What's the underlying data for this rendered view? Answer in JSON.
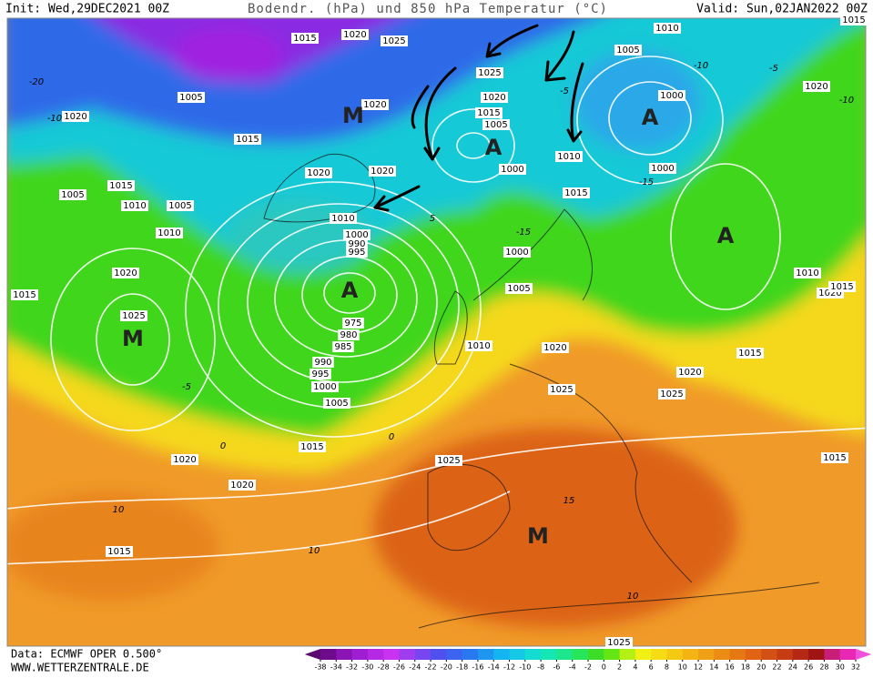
{
  "header": {
    "init": "Init: Wed,29DEC2021 00Z",
    "title": "Bodendr. (hPa) und 850 hPa Temperatur (°C)",
    "valid": "Valid: Sun,02JAN2022 00Z"
  },
  "footer": {
    "source": "Data: ECMWF OPER 0.500°",
    "site": "WWW.WETTERZENTRALE.DE"
  },
  "isobar_labels": [
    1015,
    1020,
    1025,
    1005,
    1020,
    1015,
    1020,
    1025,
    1020,
    1015,
    1005,
    1000,
    1010,
    1010,
    1005,
    1000,
    1000,
    1020,
    1015,
    1015,
    1005,
    1010,
    1005,
    1010,
    1020,
    1015,
    1025,
    1020,
    1020,
    1010,
    1000,
    990,
    995,
    1000,
    1005,
    975,
    980,
    985,
    990,
    995,
    1000,
    1005,
    1010,
    1020,
    1015,
    1020,
    1020,
    1025,
    1025,
    1020,
    1025,
    1015,
    1010,
    1020,
    1015,
    1015,
    1015,
    1025,
    1015
  ],
  "temperature_labels": [
    -20,
    -10,
    -10,
    -5,
    -15,
    -10,
    -5,
    0,
    0,
    5,
    10,
    15,
    10,
    10,
    -5,
    -15
  ],
  "pressure_centers": [
    "M",
    "A",
    "A",
    "A",
    "A",
    "M",
    "M"
  ],
  "colorbar": {
    "ticks": [
      -38,
      -34,
      -32,
      -30,
      -28,
      -26,
      -24,
      -22,
      -20,
      -18,
      -16,
      -14,
      -12,
      -10,
      -8,
      -6,
      -4,
      -2,
      0,
      2,
      4,
      6,
      8,
      10,
      12,
      14,
      16,
      18,
      20,
      22,
      24,
      26,
      28,
      30,
      32
    ],
    "colors": [
      "#5a0a6e",
      "#6e0a8c",
      "#8a14b4",
      "#a01ed2",
      "#b428e6",
      "#c832f0",
      "#a03cf0",
      "#7846f0",
      "#5050f0",
      "#3c64f0",
      "#2878f0",
      "#1e96f0",
      "#14b4f0",
      "#14c8e6",
      "#14dcd2",
      "#14e6b4",
      "#1ee68c",
      "#28e65a",
      "#3cdc28",
      "#64e614",
      "#b4f014",
      "#f0f014",
      "#f5dc14",
      "#f5c814",
      "#f5b414",
      "#f0a014",
      "#eb8c14",
      "#e67814",
      "#e16414",
      "#d25014",
      "#c83c14",
      "#b42814",
      "#a01414",
      "#c81e78",
      "#e628b4",
      "#f050dc"
    ]
  }
}
